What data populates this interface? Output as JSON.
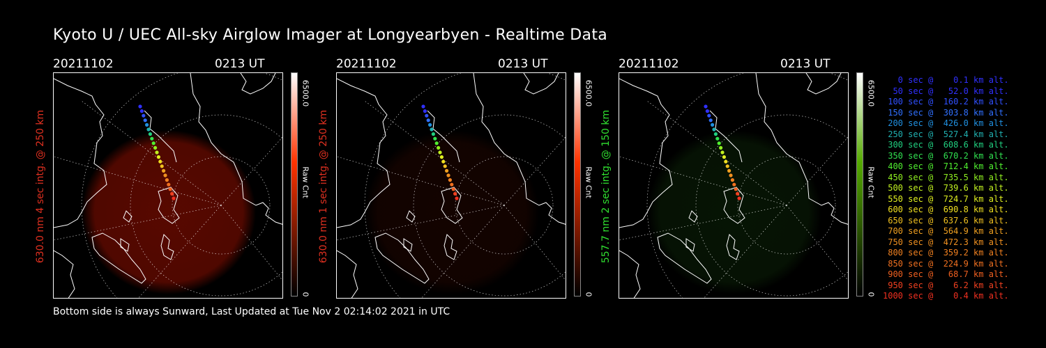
{
  "header": {
    "title": "Kyoto U / UEC All-sky Airglow Imager at Longyearbyen - Realtime Data"
  },
  "footer": {
    "text": "Bottom side is always Sunward, Last Updated at Tue Nov  2 02:14:02 2021 in UTC"
  },
  "panels": [
    {
      "date": "20211102",
      "time": "0213 UT",
      "label": "630.0 nm 4 sec intg. @ 250 km",
      "label_color": "#e03020",
      "cbar_max": "6500.0",
      "cbar_min": "0",
      "cbar_unit": "Raw Cnt",
      "cbar_color": "#ff3300",
      "glow_color": "#a01000",
      "glow_level": 0.55
    },
    {
      "date": "20211102",
      "time": "0213 UT",
      "label": "630.0 nm 1 sec intg. @ 250 km",
      "label_color": "#e03020",
      "cbar_max": "6500.0",
      "cbar_min": "0",
      "cbar_unit": "Raw Cnt",
      "cbar_color": "#ff3300",
      "glow_color": "#601000",
      "glow_level": 0.2
    },
    {
      "date": "20211102",
      "time": "0213 UT",
      "label": "557.7 nm 2 sec intg. @ 150 km",
      "label_color": "#30e030",
      "cbar_max": "6500.0",
      "cbar_min": "0",
      "cbar_unit": "Raw Cnt",
      "cbar_color": "#55aa00",
      "glow_color": "#1a5010",
      "glow_level": 0.25
    }
  ],
  "legend": [
    {
      "text": "   0 sec @    0.1 km alt.",
      "color": "#3030ff"
    },
    {
      "text": "  50 sec @   52.0 km alt.",
      "color": "#3030ff"
    },
    {
      "text": " 100 sec @  160.2 km alt.",
      "color": "#3050ff"
    },
    {
      "text": " 150 sec @  303.8 km alt.",
      "color": "#3070ff"
    },
    {
      "text": " 200 sec @  426.0 km alt.",
      "color": "#2090e0"
    },
    {
      "text": " 250 sec @  527.4 km alt.",
      "color": "#20b0b0"
    },
    {
      "text": " 300 sec @  608.6 km alt.",
      "color": "#20d080"
    },
    {
      "text": " 350 sec @  670.2 km alt.",
      "color": "#30e050"
    },
    {
      "text": " 400 sec @  712.4 km alt.",
      "color": "#50f030"
    },
    {
      "text": " 450 sec @  735.5 km alt.",
      "color": "#90f020"
    },
    {
      "text": " 500 sec @  739.6 km alt.",
      "color": "#c0f020"
    },
    {
      "text": " 550 sec @  724.7 km alt.",
      "color": "#e0f020"
    },
    {
      "text": " 600 sec @  690.8 km alt.",
      "color": "#f0e020"
    },
    {
      "text": " 650 sec @  637.6 km alt.",
      "color": "#f0c020"
    },
    {
      "text": " 700 sec @  564.9 km alt.",
      "color": "#f0a020"
    },
    {
      "text": " 750 sec @  472.3 km alt.",
      "color": "#f09020"
    },
    {
      "text": " 800 sec @  359.2 km alt.",
      "color": "#f08020"
    },
    {
      "text": " 850 sec @  224.9 km alt.",
      "color": "#f07020"
    },
    {
      "text": " 900 sec @   68.7 km alt.",
      "color": "#f06020"
    },
    {
      "text": " 950 sec @    6.2 km alt.",
      "color": "#f04020"
    },
    {
      "text": "1000 sec @    0.4 km alt.",
      "color": "#f03020"
    }
  ]
}
